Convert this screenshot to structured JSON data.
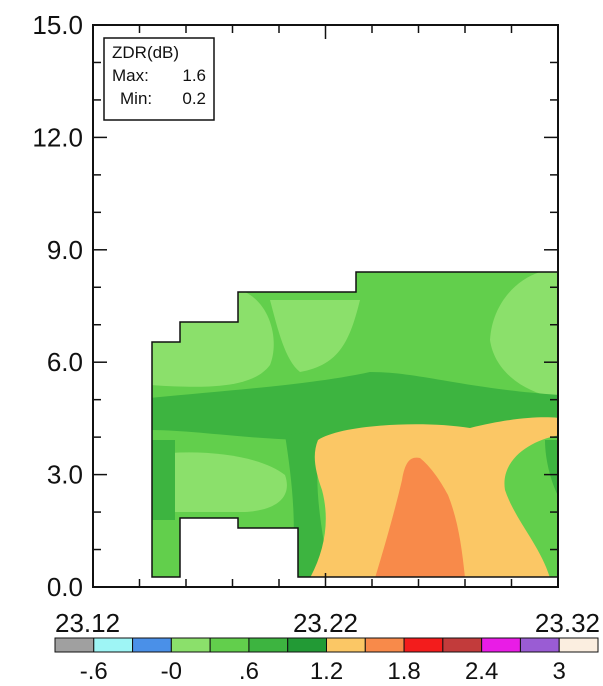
{
  "chart_data": {
    "type": "heatmap",
    "title": "",
    "xlabel": "",
    "ylabel": "",
    "xlim": [
      23.12,
      23.32
    ],
    "ylim": [
      0.0,
      15.0
    ],
    "x_ticks": [
      "23.12",
      "23.22",
      "23.32"
    ],
    "y_ticks": [
      "0.0",
      "3.0",
      "6.0",
      "9.0",
      "12.0",
      "15.0"
    ],
    "legend": {
      "placement": "top-left",
      "variable": "ZDR(dB)",
      "max_label": "Max:",
      "max_value": "1.6",
      "min_label": "Min:",
      "min_value": "0.2"
    },
    "colorbar": {
      "labels": [
        "-.6",
        "-0",
        ".6",
        "1.2",
        "1.8",
        "2.4",
        "3"
      ],
      "colors": [
        "#a0a0a0",
        "#9ef5f5",
        "#4a90e8",
        "#8be06b",
        "#62cf4c",
        "#3db440",
        "#229a35",
        "#fbc765",
        "#f88a4a",
        "#f31c1c",
        "#c23b3b",
        "#e91ce6",
        "#9a5cd4",
        "#fbeee0"
      ]
    },
    "data_extent": {
      "x_range": [
        23.14,
        23.32
      ],
      "top_height_km": [
        6.6,
        7.1,
        7.9,
        8.4
      ],
      "zdr_max_db": 1.6,
      "zdr_min_db": 0.2
    }
  }
}
